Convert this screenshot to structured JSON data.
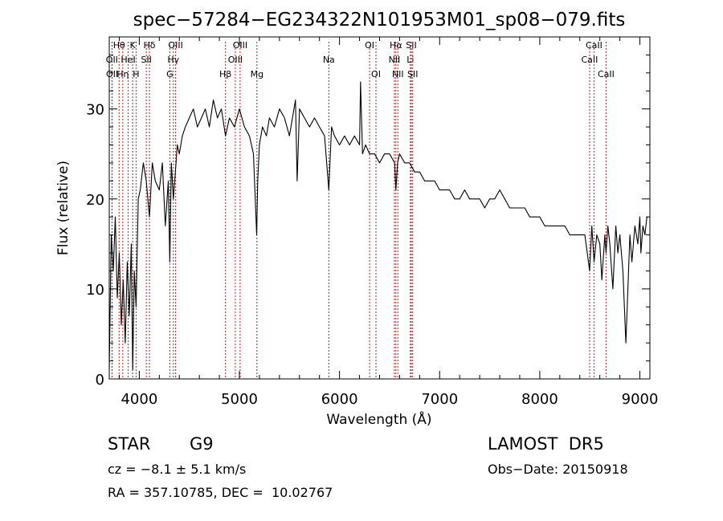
{
  "chart_data": {
    "type": "line",
    "title": "spec−57284−EG234322N101953M01_sp08−079.fits",
    "xlabel": "Wavelength (Å)",
    "ylabel": "Flux (relative)",
    "xlim": [
      3700,
      9100
    ],
    "ylim": [
      0,
      38
    ],
    "xticks": [
      4000,
      5000,
      6000,
      7000,
      8000,
      9000
    ],
    "yticks": [
      0,
      10,
      20,
      30
    ],
    "grid": false,
    "line_color": "#000000",
    "marker_color": "#b22222",
    "series": [
      {
        "x": [
          3700,
          3720,
          3740,
          3760,
          3780,
          3800,
          3820,
          3840,
          3860,
          3880,
          3900,
          3920,
          3934,
          3950,
          3968,
          3990,
          4010,
          4040,
          4070,
          4101,
          4130,
          4160,
          4200,
          4230,
          4260,
          4290,
          4305,
          4320,
          4340,
          4360,
          4380,
          4400,
          4430,
          4460,
          4500,
          4540,
          4580,
          4620,
          4660,
          4700,
          4740,
          4780,
          4820,
          4861,
          4900,
          4950,
          5000,
          5050,
          5100,
          5140,
          5172,
          5183,
          5200,
          5230,
          5270,
          5300,
          5350,
          5400,
          5450,
          5500,
          5560,
          5577,
          5600,
          5650,
          5700,
          5750,
          5800,
          5850,
          5893,
          5920,
          5950,
          6000,
          6050,
          6100,
          6150,
          6200,
          6210,
          6230,
          6260,
          6300,
          6350,
          6400,
          6450,
          6500,
          6550,
          6563,
          6580,
          6600,
          6650,
          6700,
          6750,
          6800,
          6850,
          6900,
          6950,
          7000,
          7050,
          7100,
          7150,
          7200,
          7250,
          7300,
          7350,
          7400,
          7450,
          7500,
          7550,
          7600,
          7650,
          7700,
          7750,
          7800,
          7850,
          7900,
          7950,
          8000,
          8050,
          8100,
          8150,
          8200,
          8250,
          8300,
          8350,
          8400,
          8450,
          8498,
          8520,
          8542,
          8570,
          8600,
          8620,
          8650,
          8662,
          8680,
          8700,
          8730,
          8760,
          8780,
          8800,
          8830,
          8860,
          8900,
          8920,
          8950,
          8980,
          9000,
          9010,
          9030,
          9050,
          9070
        ],
        "y": [
          1,
          16,
          12,
          18,
          9,
          14,
          6,
          11,
          4,
          13,
          7,
          15,
          1,
          12,
          8,
          20,
          21,
          24,
          22,
          18,
          24,
          22,
          21,
          24,
          17,
          22,
          13,
          24,
          20,
          23,
          26,
          25,
          27,
          28,
          29,
          30,
          28,
          29,
          30,
          28,
          31,
          29,
          30,
          27,
          29,
          28,
          30,
          28,
          27,
          25,
          16,
          22,
          26,
          28,
          27,
          29,
          28,
          30,
          29,
          27,
          31,
          22,
          30,
          29,
          28,
          29,
          28,
          27,
          21,
          28,
          27,
          26,
          27,
          26,
          27,
          26,
          33,
          25,
          26,
          25,
          25,
          24,
          25,
          25,
          24,
          21,
          24,
          25,
          24,
          24,
          23,
          23,
          22,
          22,
          22,
          21,
          21,
          21,
          20,
          20,
          21,
          20,
          20,
          20,
          19,
          20,
          20,
          21,
          20,
          19,
          19,
          19,
          19,
          18,
          18,
          18,
          17,
          17,
          17,
          17,
          17,
          16,
          16,
          16,
          16,
          12,
          17,
          13,
          16,
          15,
          11,
          16,
          14,
          17,
          15,
          10,
          17,
          14,
          16,
          12,
          4,
          16,
          13,
          17,
          15,
          18,
          14,
          17,
          16,
          18
        ]
      }
    ],
    "line_markers": [
      {
        "label": "Hθ",
        "wavelength": 3798,
        "row": 0
      },
      {
        "label": "OII",
        "wavelength": 3727,
        "row": 1
      },
      {
        "label": "OII",
        "wavelength": 3729,
        "row": 2
      },
      {
        "label": "K",
        "wavelength": 3934,
        "row": 0
      },
      {
        "label": "HeI",
        "wavelength": 3889,
        "row": 1
      },
      {
        "label": "Hη",
        "wavelength": 3835,
        "row": 2
      },
      {
        "label": "Hδ",
        "wavelength": 4101,
        "row": 0
      },
      {
        "label": "SII",
        "wavelength": 4070,
        "row": 1
      },
      {
        "label": "H",
        "wavelength": 3968,
        "row": 2
      },
      {
        "label": "OIII",
        "wavelength": 4363,
        "row": 0
      },
      {
        "label": "Hγ",
        "wavelength": 4340,
        "row": 1
      },
      {
        "label": "G",
        "wavelength": 4305,
        "row": 2
      },
      {
        "label": "OIII",
        "wavelength": 5007,
        "row": 0
      },
      {
        "label": "OIII",
        "wavelength": 4959,
        "row": 1
      },
      {
        "label": "Hβ",
        "wavelength": 4861,
        "row": 2
      },
      {
        "label": "Mg",
        "wavelength": 5175,
        "row": 2
      },
      {
        "label": "Na",
        "wavelength": 5893,
        "row": 1
      },
      {
        "label": "OI",
        "wavelength": 6300,
        "row": 0
      },
      {
        "label": "OI",
        "wavelength": 6364,
        "row": 2
      },
      {
        "label": "Hα",
        "wavelength": 6563,
        "row": 0
      },
      {
        "label": "NII",
        "wavelength": 6548,
        "row": 1
      },
      {
        "label": "NII",
        "wavelength": 6583,
        "row": 2
      },
      {
        "label": "SII",
        "wavelength": 6717,
        "row": 0
      },
      {
        "label": "Li",
        "wavelength": 6708,
        "row": 1
      },
      {
        "label": "SII",
        "wavelength": 6731,
        "row": 2
      },
      {
        "label": "CaII",
        "wavelength": 8542,
        "row": 0
      },
      {
        "label": "CaII",
        "wavelength": 8498,
        "row": 1
      },
      {
        "label": "CaII",
        "wavelength": 8662,
        "row": 2
      }
    ]
  },
  "info": {
    "class_label": "STAR",
    "subclass_label": "G9",
    "survey_label": "LAMOST  DR5",
    "cz_text": "cz = −8.1 ± 5.1 km/s",
    "obs_date_text": "Obs−Date: 20150918",
    "coords_text": "RA = 357.10785, DEC =  10.02767"
  }
}
